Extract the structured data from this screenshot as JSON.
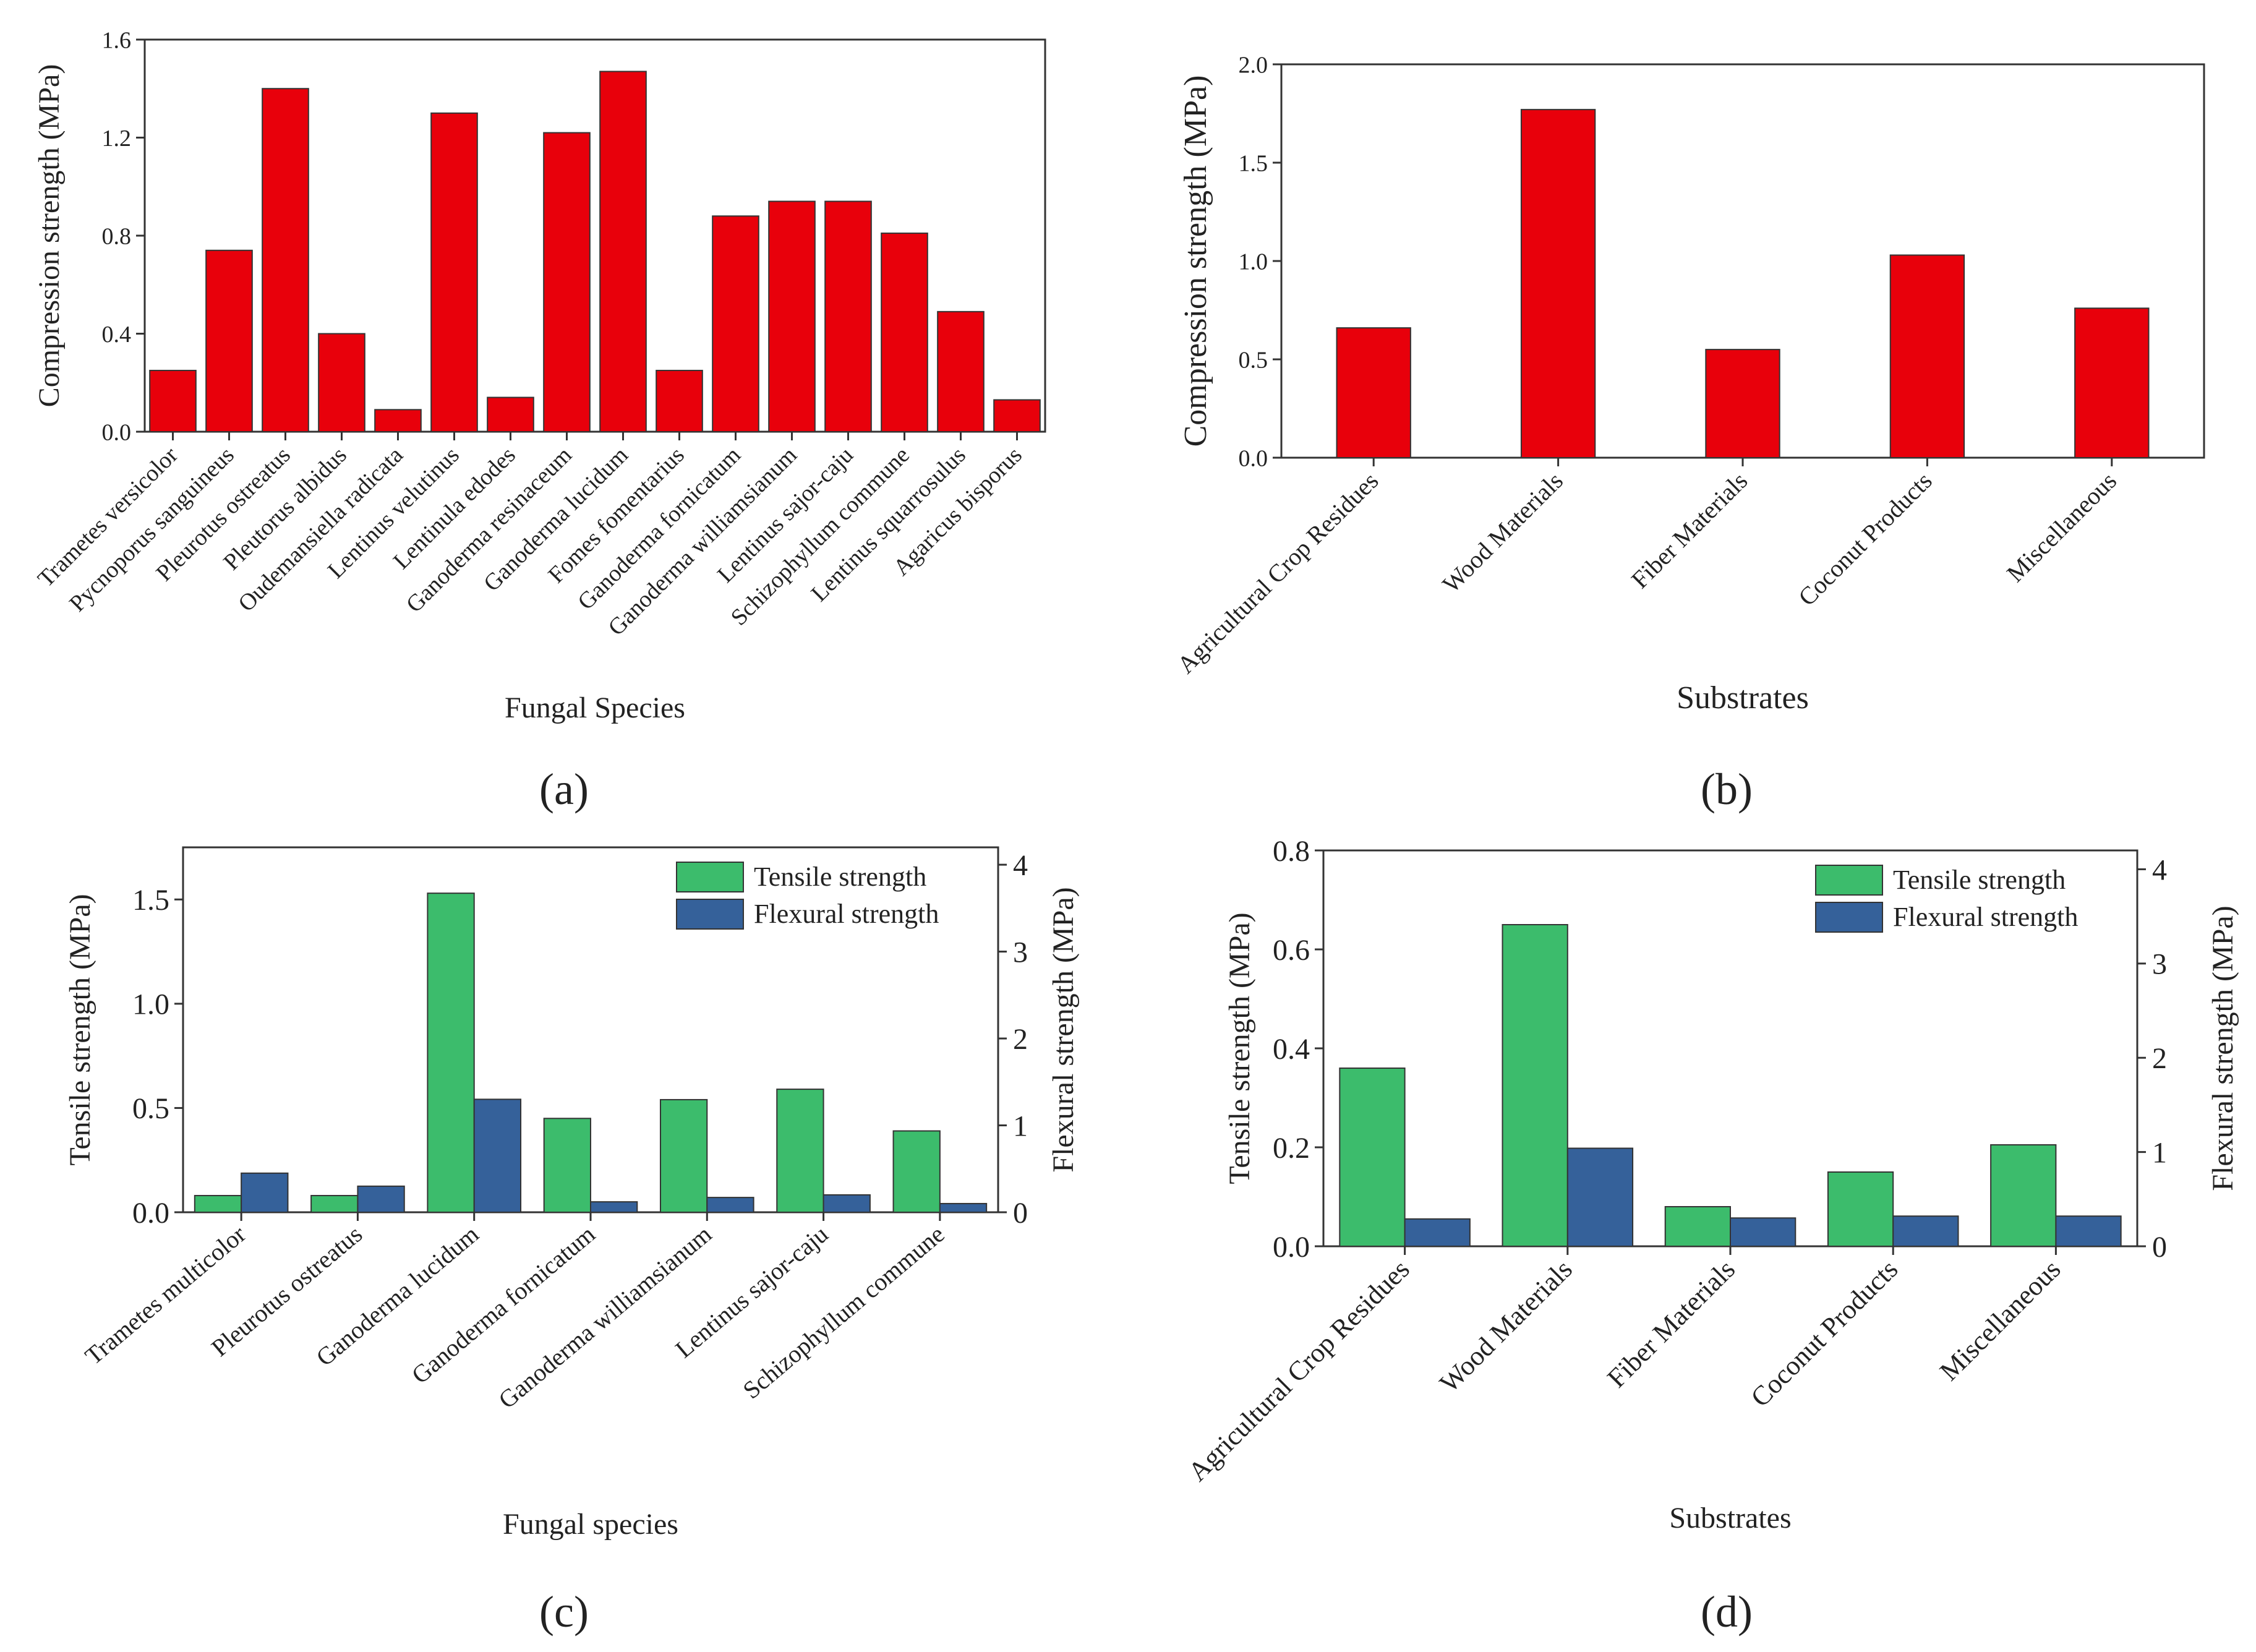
{
  "chart_data": [
    {
      "panel": "a",
      "panel_label": "(a)",
      "type": "bar",
      "xlabel": "Fungal Species",
      "ylabel": "Compression strength (MPa)",
      "ylim": [
        0,
        1.6
      ],
      "yticks": [
        "0.0",
        "0.4",
        "0.8",
        "1.2",
        "1.6"
      ],
      "categories": [
        "Trametes versicolor",
        "Pycnoporus sanguineus",
        "Pleurotus ostreatus",
        "Pleutorus albidus",
        "Oudemansiella radicata",
        "Lentinus velutinus",
        "Lentinula edodes",
        "Ganoderma resinaceum",
        "Ganoderma lucidum",
        "Fomes fomentarius",
        "Ganoderma fornicatum",
        "Ganoderma williamsianum",
        "Lentinus sajor-caju",
        "Schizophyllum commune",
        "Lentinus squarrosulus",
        "Agaricus bisporus"
      ],
      "series": [
        {
          "values": [
            0.25,
            0.74,
            1.4,
            0.4,
            0.09,
            1.3,
            0.14,
            1.22,
            1.47,
            0.25,
            0.88,
            0.94,
            0.94,
            0.81,
            0.49,
            0.13
          ],
          "color": "#e8000b"
        }
      ],
      "grid": false,
      "legend": "none"
    },
    {
      "panel": "b",
      "panel_label": "(b)",
      "type": "bar",
      "xlabel": "Substrates",
      "ylabel": "Compression strength (MPa)",
      "ylim": [
        0,
        2.0
      ],
      "yticks": [
        "0.0",
        "0.5",
        "1.0",
        "1.5",
        "2.0"
      ],
      "categories": [
        "Agricultural Crop Residues",
        "Wood Materials",
        "Fiber Materials",
        "Coconut Products",
        "Miscellaneous"
      ],
      "series": [
        {
          "values": [
            0.66,
            1.77,
            0.55,
            1.03,
            0.76
          ],
          "color": "#e8000b"
        }
      ],
      "grid": false,
      "legend": "none"
    },
    {
      "panel": "c",
      "panel_label": "(c)",
      "type": "bar",
      "xlabel": "Fungal species",
      "ylabel": "Tensile strength (MPa)",
      "ylabel_right": "Flexural strength (MPa)",
      "ylim": [
        0,
        1.75
      ],
      "ylim_right": [
        0,
        4.2
      ],
      "yticks": [
        "0.0",
        "0.5",
        "1.0",
        "1.5"
      ],
      "yticks_right": [
        "0",
        "1",
        "2",
        "3",
        "4"
      ],
      "categories": [
        "Trametes multicolor",
        "Pleurotus ostreatus",
        "Ganoderma lucidum",
        "Ganoderma fornicatum",
        "Ganoderma williamsianum",
        "Lentinus sajor-caju",
        "Schizophyllum commune"
      ],
      "series": [
        {
          "name": "Tensile strength",
          "axis": "left",
          "values": [
            0.08,
            0.08,
            1.53,
            0.45,
            0.54,
            0.59,
            0.39
          ],
          "color": "#3cbc6c"
        },
        {
          "name": "Flexural strength",
          "axis": "right",
          "values": [
            0.45,
            0.3,
            1.3,
            0.12,
            0.17,
            0.2,
            0.1
          ],
          "color": "#35619a"
        }
      ],
      "grid": false,
      "legend": "top-right"
    },
    {
      "panel": "d",
      "panel_label": "(d)",
      "type": "bar",
      "xlabel": "Substrates",
      "ylabel": "Tensile strength (MPa)",
      "ylabel_right": "Flexural strength (MPa)",
      "ylim": [
        0,
        0.8
      ],
      "ylim_right": [
        0,
        4.2
      ],
      "yticks": [
        "0.0",
        "0.2",
        "0.4",
        "0.6",
        "0.8"
      ],
      "yticks_right": [
        "0",
        "1",
        "2",
        "3",
        "4"
      ],
      "categories": [
        "Agricultural Crop Residues",
        "Wood Materials",
        "Fiber Materials",
        "Coconut Products",
        "Miscellaneous"
      ],
      "series": [
        {
          "name": "Tensile strength",
          "axis": "left",
          "values": [
            0.36,
            0.65,
            0.08,
            0.15,
            0.205
          ],
          "color": "#3cbc6c"
        },
        {
          "name": "Flexural strength",
          "axis": "right",
          "values": [
            0.29,
            1.04,
            0.3,
            0.32,
            0.32
          ],
          "color": "#35619a"
        }
      ],
      "grid": false,
      "legend": "top-right"
    }
  ]
}
